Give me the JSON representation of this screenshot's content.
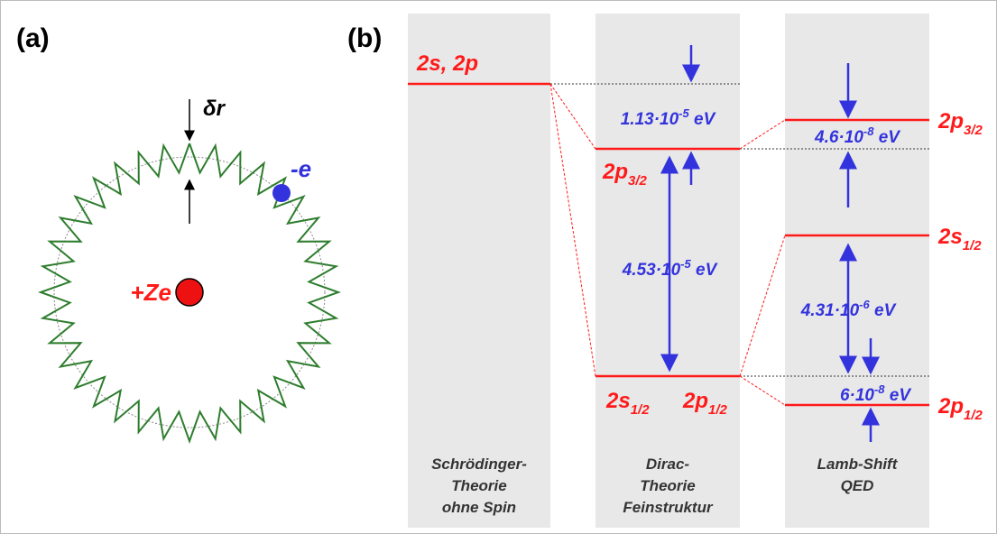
{
  "panel_a": {
    "label": "(a)",
    "delta_r": "δr",
    "electron": "-e",
    "nucleus": "+Ze"
  },
  "panel_b": {
    "label": "(b)",
    "schroedinger": {
      "level": "2s, 2p",
      "caption": [
        "Schrödinger-",
        "Theorie",
        "ohne Spin"
      ]
    },
    "dirac": {
      "upper": {
        "main": "2p",
        "sub": "3/2"
      },
      "lower_s": {
        "main": "2s",
        "sub": "1/2"
      },
      "lower_p": {
        "main": "2p",
        "sub": "1/2"
      },
      "shift_up": {
        "base": "1.13·10",
        "exp": "-5",
        "unit": " eV"
      },
      "splitting": {
        "base": "4.53·10",
        "exp": "-5",
        "unit": " eV"
      },
      "caption": [
        "Dirac-",
        "Theorie",
        "Feinstruktur"
      ]
    },
    "lamb": {
      "p32": {
        "main": "2p",
        "sub": "3/2"
      },
      "s12": {
        "main": "2s",
        "sub": "1/2"
      },
      "p12": {
        "main": "2p",
        "sub": "1/2"
      },
      "shift_p32": {
        "base": "4.6·10",
        "exp": "-8",
        "unit": " eV"
      },
      "splitting": {
        "base": "4.31·10",
        "exp": "-6",
        "unit": " eV"
      },
      "shift_p12": {
        "base": "6·10",
        "exp": "-8",
        "unit": " eV"
      },
      "caption": [
        "Lamb-Shift",
        "QED"
      ]
    }
  }
}
